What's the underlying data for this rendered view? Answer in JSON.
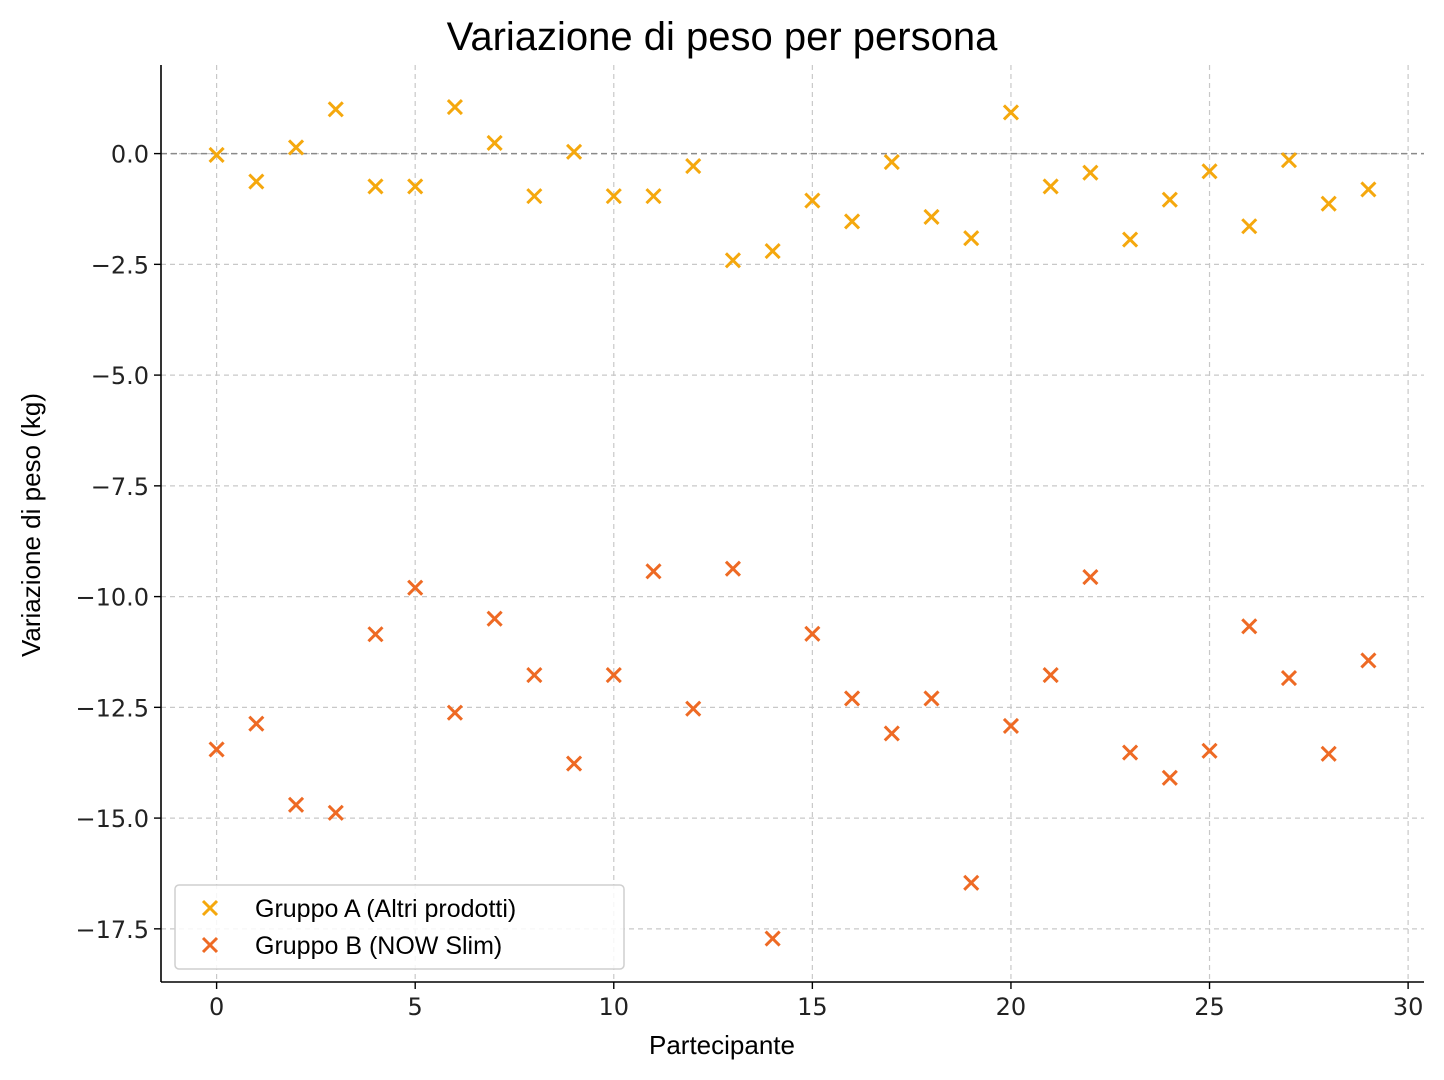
{
  "chart_data": {
    "type": "scatter",
    "title": "Variazione di peso per persona",
    "xlabel": "Partecipante",
    "ylabel": "Variazione di peso (kg)",
    "xlim": [
      -1.4,
      30.4
    ],
    "ylim": [
      -18.7,
      2.0
    ],
    "xticks": [
      0,
      5,
      10,
      15,
      20,
      25,
      30
    ],
    "yticks": [
      0.0,
      -2.5,
      -5.0,
      -7.5,
      -10.0,
      -12.5,
      -15.0,
      -17.5
    ],
    "ytick_labels": [
      "0.0",
      "−2.5",
      "−5.0",
      "−7.5",
      "−10.0",
      "−12.5",
      "−15.0",
      "−17.5"
    ],
    "grid": true,
    "reference_line_y": 0.0,
    "legend_position": "lower-left",
    "marker": "x",
    "x": [
      0,
      1,
      2,
      3,
      4,
      5,
      6,
      7,
      8,
      9,
      10,
      11,
      12,
      13,
      14,
      15,
      16,
      17,
      18,
      19,
      20,
      21,
      22,
      23,
      24,
      25,
      26,
      27,
      28,
      29
    ],
    "series": [
      {
        "name": "Gruppo A (Altri prodotti)",
        "color": "#F5A80D",
        "values": [
          -0.03,
          -0.63,
          0.14,
          1.0,
          -0.74,
          -0.74,
          1.05,
          0.24,
          -0.96,
          0.04,
          -0.96,
          -0.96,
          -0.28,
          -2.41,
          -2.2,
          -1.06,
          -1.53,
          -0.19,
          -1.43,
          -1.91,
          0.93,
          -0.74,
          -0.43,
          -1.94,
          -1.04,
          -0.4,
          -1.64,
          -0.15,
          -1.13,
          -0.81
        ]
      },
      {
        "name": "Gruppo B (NOW Slim)",
        "color": "#EE6A24",
        "values": [
          -13.45,
          -12.87,
          -14.7,
          -14.88,
          -10.85,
          -9.8,
          -12.62,
          -10.5,
          -11.77,
          -13.77,
          -11.77,
          -9.43,
          -12.53,
          -9.37,
          -17.72,
          -10.84,
          -12.3,
          -13.09,
          -12.3,
          -16.46,
          -12.92,
          -11.77,
          -9.56,
          -13.52,
          -14.09,
          -13.48,
          -10.67,
          -11.84,
          -13.55,
          -11.44
        ]
      }
    ]
  }
}
